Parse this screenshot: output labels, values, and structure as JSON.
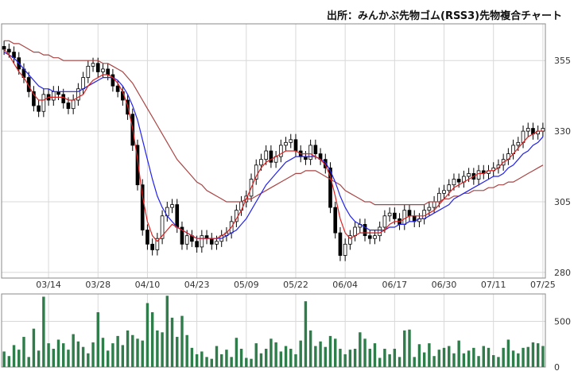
{
  "source_label": "出所：みんかぶ先物ゴム(RSS3)先物複合チャート",
  "colors": {
    "ma_short": "#dd2222",
    "ma_mid": "#2222ee",
    "ma_long": "#aa4444",
    "volume": "#2e7d4a",
    "candle_up_fill": "#ffffff",
    "candle_down_fill": "#000000"
  },
  "chart_data": [
    {
      "type": "candlestick",
      "y_ticks": [
        280,
        305,
        330,
        355
      ],
      "ylim": [
        278,
        368
      ],
      "x_tick_labels": [
        "03/14",
        "03/28",
        "04/10",
        "04/23",
        "05/09",
        "05/22",
        "06/04",
        "06/17",
        "06/30",
        "07/11",
        "07/25"
      ],
      "x_tick_index": [
        9,
        19,
        29,
        39,
        49,
        59,
        69,
        79,
        89,
        99,
        109
      ],
      "grid": true,
      "legend": "none",
      "close": [
        359,
        358,
        356,
        352,
        349,
        344,
        339,
        337,
        343,
        341,
        344,
        343,
        340,
        338,
        341,
        345,
        349,
        353,
        354,
        351,
        352,
        350,
        346,
        344,
        341,
        336,
        325,
        311,
        295,
        290,
        288,
        292,
        300,
        303,
        304,
        296,
        290,
        293,
        291,
        289,
        293,
        292,
        290,
        291,
        293,
        294,
        298,
        302,
        305,
        307,
        313,
        318,
        320,
        323,
        319,
        321,
        325,
        326,
        327,
        323,
        321,
        320,
        325,
        322,
        320,
        317,
        303,
        294,
        286,
        290,
        293,
        296,
        297,
        293,
        292,
        293,
        296,
        300,
        301,
        299,
        297,
        302,
        300,
        298,
        299,
        302,
        303,
        305,
        308,
        309,
        311,
        313,
        312,
        314,
        315,
        313,
        316,
        315,
        316,
        317,
        318,
        320,
        322,
        325,
        326,
        330,
        331,
        329,
        330,
        331
      ],
      "ma_short_values": [
        359,
        357,
        354,
        351,
        349,
        346,
        343,
        341,
        341,
        342,
        342,
        342,
        342,
        341,
        341,
        342,
        343,
        346,
        348,
        349,
        350,
        350,
        349,
        347,
        344,
        339,
        331,
        320,
        307,
        298,
        293,
        291,
        293,
        295,
        297,
        296,
        295,
        294,
        293,
        292,
        292,
        292,
        292,
        292,
        293,
        294,
        296,
        299,
        302,
        306,
        310,
        314,
        317,
        319,
        320,
        321,
        322,
        323,
        323,
        323,
        322,
        322,
        322,
        321,
        320,
        318,
        314,
        307,
        299,
        294,
        292,
        293,
        294,
        294,
        294,
        294,
        294,
        295,
        297,
        298,
        298,
        299,
        300,
        300,
        300,
        300,
        301,
        302,
        304,
        306,
        308,
        310,
        311,
        312,
        313,
        314,
        315,
        315,
        316,
        316,
        317,
        319,
        320,
        322,
        324,
        326,
        328,
        329,
        330,
        330
      ],
      "ma_mid_values": [
        358,
        357,
        356,
        354,
        352,
        350,
        348,
        346,
        345,
        345,
        344,
        344,
        344,
        344,
        344,
        344,
        345,
        346,
        347,
        348,
        349,
        349,
        349,
        348,
        346,
        343,
        339,
        334,
        327,
        320,
        313,
        307,
        303,
        300,
        298,
        296,
        295,
        294,
        293,
        292,
        292,
        292,
        292,
        292,
        292,
        293,
        294,
        295,
        297,
        299,
        302,
        305,
        308,
        311,
        313,
        315,
        317,
        319,
        320,
        321,
        321,
        321,
        321,
        321,
        320,
        319,
        316,
        312,
        307,
        303,
        300,
        298,
        297,
        296,
        295,
        295,
        295,
        295,
        296,
        296,
        297,
        297,
        298,
        298,
        299,
        299,
        300,
        301,
        302,
        303,
        304,
        306,
        307,
        308,
        309,
        310,
        311,
        312,
        313,
        314,
        314,
        315,
        317,
        318,
        320,
        322,
        323,
        325,
        326,
        328
      ],
      "ma_long_values": [
        362,
        362,
        361,
        361,
        360,
        359,
        358,
        358,
        357,
        357,
        356,
        356,
        355,
        355,
        355,
        355,
        355,
        355,
        355,
        355,
        354,
        354,
        353,
        352,
        351,
        349,
        347,
        344,
        341,
        338,
        335,
        332,
        329,
        326,
        323,
        320,
        318,
        316,
        314,
        312,
        311,
        309,
        308,
        307,
        306,
        305,
        305,
        305,
        305,
        306,
        306,
        307,
        308,
        309,
        310,
        311,
        312,
        313,
        314,
        315,
        315,
        316,
        316,
        316,
        315,
        314,
        313,
        312,
        311,
        309,
        308,
        307,
        306,
        305,
        305,
        304,
        304,
        304,
        304,
        304,
        304,
        304,
        304,
        304,
        304,
        304,
        305,
        305,
        305,
        306,
        306,
        307,
        307,
        308,
        308,
        309,
        309,
        309,
        310,
        310,
        311,
        311,
        312,
        312,
        313,
        314,
        315,
        316,
        317,
        318
      ]
    },
    {
      "type": "bar",
      "y_ticks": [
        0,
        500
      ],
      "ylim": [
        0,
        800
      ],
      "values": [
        170,
        120,
        240,
        190,
        330,
        110,
        420,
        180,
        770,
        260,
        200,
        300,
        260,
        190,
        360,
        280,
        220,
        150,
        270,
        600,
        320,
        180,
        260,
        340,
        240,
        400,
        350,
        310,
        290,
        700,
        600,
        400,
        380,
        780,
        540,
        330,
        560,
        350,
        210,
        140,
        170,
        110,
        90,
        230,
        140,
        190,
        110,
        320,
        200,
        100,
        90,
        260,
        150,
        200,
        310,
        270,
        170,
        230,
        200,
        140,
        290,
        720,
        400,
        230,
        280,
        220,
        340,
        310,
        200,
        140,
        190,
        200,
        380,
        310,
        200,
        260,
        100,
        200,
        140,
        200,
        110,
        400,
        410,
        110,
        250,
        160,
        260,
        120,
        190,
        210,
        230,
        150,
        290,
        150,
        180,
        210,
        120,
        230,
        210,
        130,
        110,
        210,
        300,
        180,
        150,
        210,
        220,
        270,
        260,
        230
      ]
    }
  ]
}
